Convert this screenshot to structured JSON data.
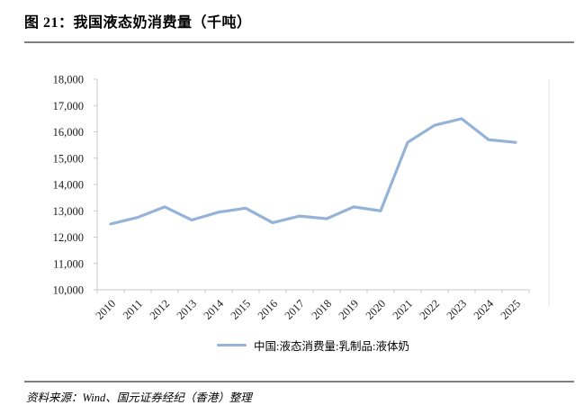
{
  "page": {
    "title": "图 21：我国液态奶消费量（千吨）",
    "source_note": "资料来源：Wind、国元证券经纪（香港）整理"
  },
  "colors": {
    "series_line": "#95B3D7",
    "axis_line": "#c9c9c9",
    "plot_right_border": "#e2e2e2",
    "divider": "#7f7f7f",
    "text": "#000000"
  },
  "chart_data": {
    "type": "line",
    "title": "我国液态奶消费量（千吨）",
    "categories": [
      "2010",
      "2011",
      "2012",
      "2013",
      "2014",
      "2015",
      "2016",
      "2017",
      "2018",
      "2019",
      "2020",
      "2021",
      "2022",
      "2023",
      "2024",
      "2025"
    ],
    "series": [
      {
        "name": "中国:液态消费量:乳制品:液体奶",
        "values": [
          12500,
          12750,
          13150,
          12650,
          12950,
          13100,
          12550,
          12800,
          12700,
          13150,
          13000,
          15600,
          16250,
          16500,
          15700,
          15600
        ]
      }
    ],
    "xlabel": "",
    "ylabel": "",
    "ylim": [
      10000,
      18000
    ],
    "ytick_step": 1000,
    "grid": false,
    "legend_position": "bottom",
    "x_tick_label_rotation": -45
  }
}
